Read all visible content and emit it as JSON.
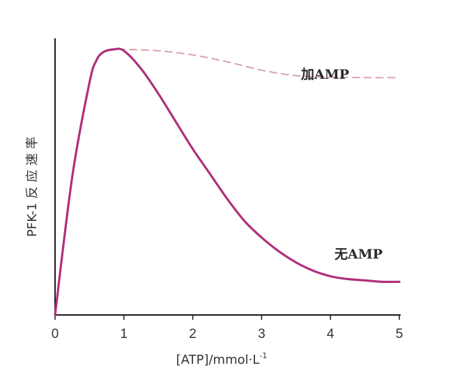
{
  "chart_data": {
    "type": "line",
    "xlabel": "[ATP]/mmol·L",
    "xlabel_superscript": "-1",
    "ylabel": "PFK-1 反 应 速 率",
    "xlim": [
      0,
      5
    ],
    "x_ticks": [
      "0",
      "1",
      "2",
      "3",
      "4",
      "5"
    ],
    "y_ticks_labeled": false,
    "grid": false,
    "legend": "none",
    "series": [
      {
        "name": "加AMP",
        "style": "dashed",
        "color": "#d9a3b0",
        "x": [
          0,
          0.25,
          0.5,
          0.6,
          0.7,
          0.85,
          1.0,
          1.5,
          2.0,
          2.5,
          3.0,
          3.5,
          4.0,
          4.5,
          5.0
        ],
        "y": [
          0,
          0.5,
          0.84,
          0.92,
          0.95,
          0.96,
          0.96,
          0.955,
          0.94,
          0.915,
          0.885,
          0.865,
          0.86,
          0.858,
          0.858
        ]
      },
      {
        "name": "无AMP",
        "style": "solid",
        "color": "#b0307c",
        "x": [
          0,
          0.25,
          0.5,
          0.6,
          0.7,
          0.85,
          1.0,
          1.25,
          1.5,
          1.75,
          2.0,
          2.25,
          2.5,
          2.75,
          3.0,
          3.25,
          3.5,
          3.75,
          4.0,
          4.25,
          4.5,
          4.75,
          5.0
        ],
        "y": [
          0,
          0.5,
          0.84,
          0.92,
          0.95,
          0.96,
          0.955,
          0.89,
          0.8,
          0.7,
          0.6,
          0.51,
          0.42,
          0.34,
          0.28,
          0.23,
          0.19,
          0.16,
          0.14,
          0.13,
          0.125,
          0.12,
          0.12
        ]
      }
    ]
  }
}
